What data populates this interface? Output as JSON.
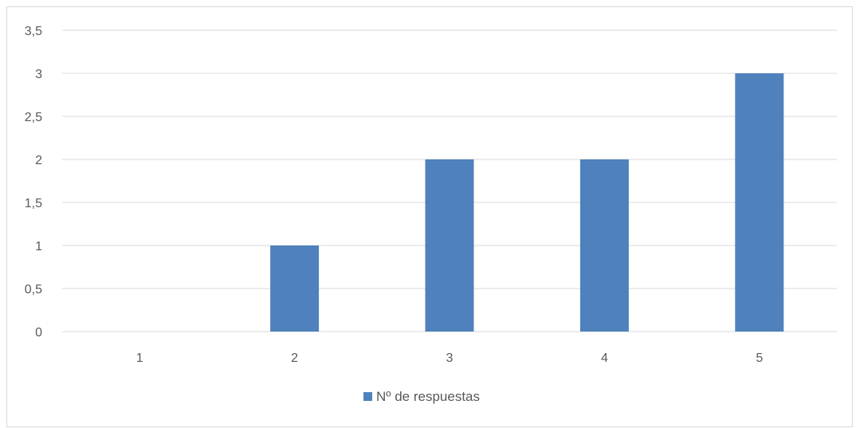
{
  "chart_data": {
    "type": "bar",
    "categories": [
      "1",
      "2",
      "3",
      "4",
      "5"
    ],
    "series": [
      {
        "name": "Nº de respuestas",
        "values": [
          0,
          1,
          2,
          2,
          3
        ],
        "color": "#4f81bd"
      }
    ],
    "title": "",
    "xlabel": "",
    "ylabel": "",
    "ylim": [
      0,
      3.5
    ],
    "yticks": [
      "0",
      "0,5",
      "1",
      "1,5",
      "2",
      "2,5",
      "3",
      "3,5"
    ],
    "grid": true,
    "legend_position": "bottom"
  }
}
